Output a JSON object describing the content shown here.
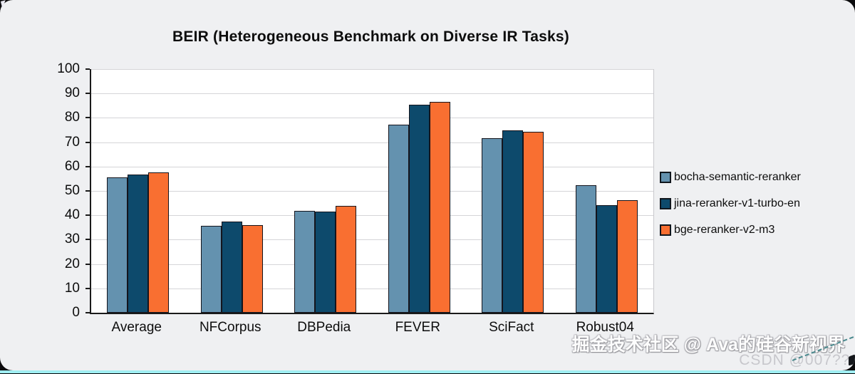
{
  "title": "BEIR (Heterogeneous Benchmark on Diverse IR Tasks)",
  "chart_data": {
    "type": "bar",
    "title": "BEIR (Heterogeneous Benchmark on Diverse IR Tasks)",
    "categories": [
      "Average",
      "NFCorpus",
      "DBPedia",
      "FEVER",
      "SciFact",
      "Robust04"
    ],
    "series": [
      {
        "name": "bocha-semantic-reranker",
        "color": "#6492af",
        "values": [
          55.7,
          35.6,
          41.9,
          77.2,
          71.5,
          52.4
        ]
      },
      {
        "name": "jina-reranker-v1-turbo-en",
        "color": "#0d4a6c",
        "values": [
          56.6,
          37.4,
          41.6,
          85.3,
          74.8,
          44.1
        ]
      },
      {
        "name": "bge-reranker-v2-m3",
        "color": "#f96f31",
        "values": [
          57.5,
          36.1,
          44.0,
          86.6,
          74.3,
          46.3
        ]
      }
    ],
    "xlabel": "",
    "ylabel": "",
    "ylim": [
      0,
      100
    ],
    "y_ticks": [
      0,
      10,
      20,
      30,
      40,
      50,
      60,
      70,
      80,
      90,
      100
    ],
    "grid": true,
    "legend_position": "right",
    "plot_background": "#ffffff",
    "panel_background": "#eff0f2"
  },
  "watermark": {
    "primary": "掘金技术社区 @ Ava的硅谷新视界",
    "secondary": "CSDN @007??1"
  },
  "colors": {
    "accent_line": "#9feef2",
    "outer_background": "#0a0a0c"
  }
}
